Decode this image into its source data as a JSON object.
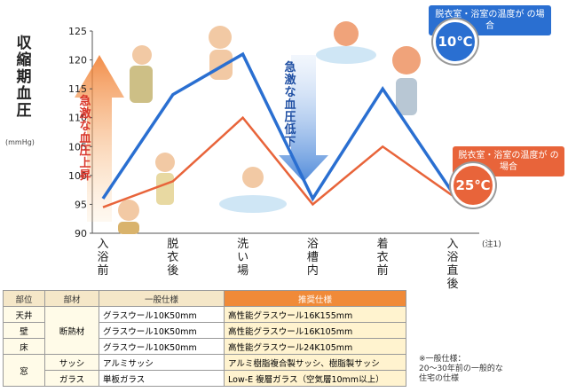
{
  "chart_data": {
    "type": "line",
    "ytitle": "収縮期血圧",
    "yunit": "(mmHg)",
    "ylim": [
      90,
      125
    ],
    "yticks": [
      90,
      95,
      100,
      105,
      110,
      115,
      120,
      125
    ],
    "categories": [
      "入浴前",
      "脱衣後",
      "洗い場",
      "浴槽内",
      "着衣前",
      "入浴直後"
    ],
    "note": "(注1)",
    "series": [
      {
        "name": "脱衣室・浴室の温度が10℃の場合",
        "color": "#2a6fd1",
        "values": [
          96,
          114,
          121,
          96,
          115,
          97
        ]
      },
      {
        "name": "脱衣室・浴室の温度が25℃の場合",
        "color": "#e8643a",
        "values": [
          94.5,
          99,
          110,
          95,
          105,
          96.5
        ]
      }
    ],
    "annotations": {
      "rise": "急激な血圧上昇",
      "drop": "急激な血圧低下"
    }
  },
  "legend": {
    "cold_text": "脱衣室・浴室の温度が の場合",
    "cold_temp": "10℃",
    "warm_text": "脱衣室・浴室の温度が の場合",
    "warm_temp": "25℃"
  },
  "table": {
    "headers": [
      "部位",
      "部材",
      "一般仕様",
      "推奨仕様"
    ],
    "rows": [
      {
        "part": "天井",
        "material": "断熱材",
        "general": "グラスウール10K50mm",
        "recommended": "高性能グラスウール16K155mm"
      },
      {
        "part": "壁",
        "material": "",
        "general": "グラスウール10K50mm",
        "recommended": "高性能グラスウール16K105mm"
      },
      {
        "part": "床",
        "material": "",
        "general": "グラスウール10K50mm",
        "recommended": "高性能グラスウール24K105mm"
      },
      {
        "part": "窓",
        "material": "サッシ",
        "general": "アルミサッシ",
        "recommended": "アルミ樹脂複合製サッシ、樹脂製サッシ"
      },
      {
        "part": "",
        "material": "ガラス",
        "general": "単板ガラス",
        "recommended": "Low-E 複層ガラス（空気層10mm以上）"
      }
    ],
    "side_note": "※一般仕様：\n20～30年前の一般的な\n住宅の仕様"
  }
}
